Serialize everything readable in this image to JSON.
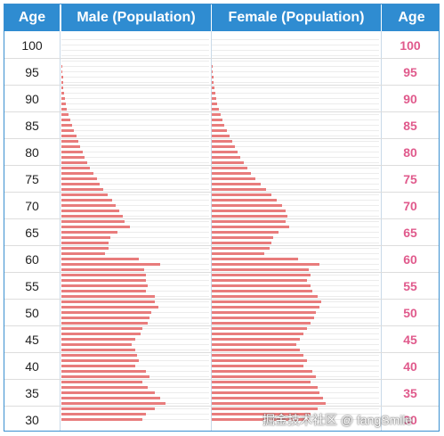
{
  "header": {
    "age_left": "Age",
    "male": "Male (Population)",
    "female": "Female (Population)",
    "age_right": "Age"
  },
  "watermark": "掘金技术社区 @ fangSmile",
  "colors": {
    "header_bg": "#2f8cd1",
    "bar": "#e87c7c",
    "right_age_label": "#e05a8c"
  },
  "chart_data": {
    "type": "bar",
    "orientation": "horizontal-mirrored",
    "title": "",
    "xlabel": "",
    "ylabel": "Age",
    "age_ticks": [
      "100",
      "95",
      "90",
      "85",
      "80",
      "75",
      "70",
      "65",
      "60",
      "55",
      "50",
      "45",
      "40",
      "35",
      "30"
    ],
    "ages": [
      100,
      99,
      98,
      97,
      96,
      95,
      94,
      93,
      92,
      91,
      90,
      89,
      88,
      87,
      86,
      85,
      84,
      83,
      82,
      81,
      80,
      79,
      78,
      77,
      76,
      75,
      74,
      73,
      72,
      71,
      70,
      69,
      68,
      67,
      66,
      65,
      64,
      63,
      62,
      61,
      60,
      59,
      58,
      57,
      56,
      55,
      54,
      53,
      52,
      51,
      50,
      49,
      48,
      47,
      46,
      45,
      44,
      43,
      42,
      41,
      40,
      39,
      38,
      37,
      36,
      35,
      34,
      33,
      32,
      31,
      30,
      29
    ],
    "xlim": [
      0,
      170
    ],
    "series": [
      {
        "name": "Male (Population)",
        "values": [
          0,
          0,
          0,
          0,
          0,
          1,
          1,
          2,
          2,
          2,
          3,
          4,
          5,
          6,
          8,
          10,
          12,
          14,
          17,
          19,
          21,
          24,
          26,
          29,
          32,
          36,
          40,
          44,
          48,
          53,
          58,
          62,
          66,
          70,
          72,
          78,
          64,
          56,
          54,
          54,
          50,
          88,
          112,
          94,
          96,
          96,
          98,
          96,
          106,
          106,
          110,
          102,
          100,
          98,
          92,
          90,
          84,
          80,
          84,
          86,
          88,
          84,
          96,
          100,
          92,
          98,
          106,
          112,
          118,
          106,
          96,
          92
        ]
      },
      {
        "name": "Female (Population)",
        "values": [
          0,
          0,
          0,
          0,
          0,
          1,
          1,
          2,
          2,
          3,
          4,
          5,
          6,
          8,
          10,
          12,
          14,
          17,
          20,
          23,
          26,
          29,
          32,
          36,
          40,
          45,
          50,
          56,
          62,
          68,
          74,
          80,
          84,
          86,
          84,
          88,
          76,
          70,
          68,
          66,
          60,
          98,
          122,
          110,
          112,
          108,
          112,
          114,
          120,
          124,
          122,
          118,
          116,
          112,
          108,
          104,
          100,
          96,
          100,
          104,
          108,
          104,
          114,
          118,
          112,
          120,
          122,
          126,
          130,
          120,
          112,
          110
        ]
      }
    ]
  }
}
